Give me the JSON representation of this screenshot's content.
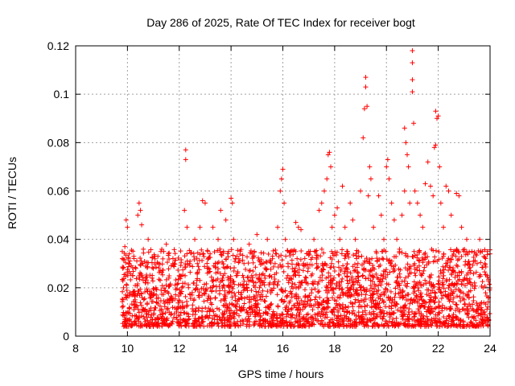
{
  "chart_data": {
    "type": "scatter",
    "title": "Day 286 of 2025, Rate Of TEC Index for receiver bogt",
    "xlabel": "GPS time / hours",
    "ylabel": "ROTI / TECUs",
    "xlim": [
      8,
      24
    ],
    "ylim": [
      0,
      0.12
    ],
    "xticks": [
      "8",
      "10",
      "12",
      "14",
      "16",
      "18",
      "20",
      "22",
      "24"
    ],
    "yticks": [
      "0",
      "0.02",
      "0.04",
      "0.06",
      "0.08",
      "0.1",
      "0.12"
    ],
    "grid": true,
    "legend": "none",
    "marker": "+",
    "series_color": "#ff0000",
    "series": [
      {
        "points": [
          [
            9.8,
            0.012
          ],
          [
            9.8,
            0.035
          ],
          [
            9.85,
            0.02
          ],
          [
            9.9,
            0.037
          ],
          [
            9.95,
            0.048
          ],
          [
            10.0,
            0.045
          ],
          [
            10.05,
            0.03
          ],
          [
            10.1,
            0.018
          ],
          [
            10.2,
            0.025
          ],
          [
            10.3,
            0.015
          ],
          [
            10.4,
            0.05
          ],
          [
            10.45,
            0.055
          ],
          [
            10.5,
            0.052
          ],
          [
            10.55,
            0.046
          ],
          [
            10.6,
            0.03
          ],
          [
            10.7,
            0.022
          ],
          [
            10.8,
            0.04
          ],
          [
            10.9,
            0.017
          ],
          [
            11.0,
            0.028
          ],
          [
            11.1,
            0.02
          ],
          [
            11.2,
            0.03
          ],
          [
            11.3,
            0.019
          ],
          [
            11.4,
            0.035
          ],
          [
            11.5,
            0.038
          ],
          [
            11.6,
            0.024
          ],
          [
            11.7,
            0.015
          ],
          [
            11.8,
            0.03
          ],
          [
            11.9,
            0.01
          ],
          [
            12.0,
            0.025
          ],
          [
            12.1,
            0.02
          ],
          [
            12.2,
            0.052
          ],
          [
            12.25,
            0.077
          ],
          [
            12.25,
            0.073
          ],
          [
            12.3,
            0.045
          ],
          [
            12.4,
            0.03
          ],
          [
            12.5,
            0.018
          ],
          [
            12.6,
            0.04
          ],
          [
            12.7,
            0.03
          ],
          [
            12.8,
            0.045
          ],
          [
            12.9,
            0.056
          ],
          [
            13.0,
            0.055
          ],
          [
            13.1,
            0.035
          ],
          [
            13.2,
            0.02
          ],
          [
            13.3,
            0.045
          ],
          [
            13.4,
            0.03
          ],
          [
            13.5,
            0.04
          ],
          [
            13.6,
            0.052
          ],
          [
            13.7,
            0.025
          ],
          [
            13.8,
            0.048
          ],
          [
            13.9,
            0.035
          ],
          [
            14.0,
            0.057
          ],
          [
            14.05,
            0.055
          ],
          [
            14.1,
            0.04
          ],
          [
            14.2,
            0.025
          ],
          [
            14.3,
            0.032
          ],
          [
            14.4,
            0.018
          ],
          [
            14.5,
            0.03
          ],
          [
            14.6,
            0.02
          ],
          [
            14.7,
            0.038
          ],
          [
            14.8,
            0.025
          ],
          [
            14.9,
            0.035
          ],
          [
            15.0,
            0.042
          ],
          [
            15.1,
            0.02
          ],
          [
            15.2,
            0.03
          ],
          [
            15.3,
            0.025
          ],
          [
            15.4,
            0.04
          ],
          [
            15.5,
            0.022
          ],
          [
            15.6,
            0.032
          ],
          [
            15.7,
            0.03
          ],
          [
            15.8,
            0.045
          ],
          [
            15.9,
            0.06
          ],
          [
            15.95,
            0.065
          ],
          [
            16.0,
            0.069
          ],
          [
            16.05,
            0.055
          ],
          [
            16.1,
            0.04
          ],
          [
            16.2,
            0.03
          ],
          [
            16.3,
            0.035
          ],
          [
            16.4,
            0.025
          ],
          [
            16.5,
            0.047
          ],
          [
            16.6,
            0.045
          ],
          [
            16.7,
            0.044
          ],
          [
            16.8,
            0.03
          ],
          [
            16.9,
            0.022
          ],
          [
            17.0,
            0.035
          ],
          [
            17.1,
            0.025
          ],
          [
            17.2,
            0.04
          ],
          [
            17.3,
            0.03
          ],
          [
            17.4,
            0.052
          ],
          [
            17.5,
            0.055
          ],
          [
            17.6,
            0.06
          ],
          [
            17.7,
            0.065
          ],
          [
            17.75,
            0.075
          ],
          [
            17.8,
            0.076
          ],
          [
            17.85,
            0.07
          ],
          [
            17.9,
            0.045
          ],
          [
            18.0,
            0.05
          ],
          [
            18.1,
            0.053
          ],
          [
            18.2,
            0.04
          ],
          [
            18.3,
            0.062
          ],
          [
            18.4,
            0.045
          ],
          [
            18.5,
            0.035
          ],
          [
            18.6,
            0.055
          ],
          [
            18.7,
            0.048
          ],
          [
            18.8,
            0.04
          ],
          [
            18.9,
            0.03
          ],
          [
            19.0,
            0.06
          ],
          [
            19.1,
            0.082
          ],
          [
            19.15,
            0.094
          ],
          [
            19.2,
            0.103
          ],
          [
            19.2,
            0.107
          ],
          [
            19.25,
            0.095
          ],
          [
            19.3,
            0.058
          ],
          [
            19.35,
            0.07
          ],
          [
            19.4,
            0.065
          ],
          [
            19.5,
            0.045
          ],
          [
            19.6,
            0.035
          ],
          [
            19.7,
            0.058
          ],
          [
            19.8,
            0.05
          ],
          [
            19.9,
            0.04
          ],
          [
            20.0,
            0.07
          ],
          [
            20.05,
            0.073
          ],
          [
            20.1,
            0.065
          ],
          [
            20.2,
            0.055
          ],
          [
            20.3,
            0.048
          ],
          [
            20.4,
            0.04
          ],
          [
            20.5,
            0.035
          ],
          [
            20.6,
            0.05
          ],
          [
            20.7,
            0.06
          ],
          [
            20.75,
            0.08
          ],
          [
            20.7,
            0.086
          ],
          [
            20.8,
            0.075
          ],
          [
            20.85,
            0.07
          ],
          [
            20.9,
            0.055
          ],
          [
            21.0,
            0.118
          ],
          [
            21.0,
            0.113
          ],
          [
            21.0,
            0.106
          ],
          [
            21.0,
            0.101
          ],
          [
            21.05,
            0.088
          ],
          [
            21.1,
            0.06
          ],
          [
            21.2,
            0.055
          ],
          [
            21.3,
            0.05
          ],
          [
            21.4,
            0.045
          ],
          [
            21.5,
            0.063
          ],
          [
            21.6,
            0.072
          ],
          [
            21.7,
            0.062
          ],
          [
            21.8,
            0.058
          ],
          [
            21.85,
            0.078
          ],
          [
            21.9,
            0.079
          ],
          [
            21.9,
            0.093
          ],
          [
            21.95,
            0.09
          ],
          [
            22.0,
            0.091
          ],
          [
            22.05,
            0.07
          ],
          [
            22.1,
            0.055
          ],
          [
            22.2,
            0.045
          ],
          [
            22.3,
            0.062
          ],
          [
            22.4,
            0.06
          ],
          [
            22.5,
            0.05
          ],
          [
            22.6,
            0.035
          ],
          [
            22.7,
            0.059
          ],
          [
            22.8,
            0.058
          ],
          [
            22.9,
            0.045
          ],
          [
            23.0,
            0.035
          ],
          [
            23.1,
            0.04
          ],
          [
            23.2,
            0.028
          ],
          [
            23.3,
            0.035
          ],
          [
            23.4,
            0.022
          ],
          [
            23.5,
            0.03
          ],
          [
            23.6,
            0.04
          ],
          [
            23.7,
            0.035
          ],
          [
            23.8,
            0.03
          ],
          [
            23.9,
            0.035
          ],
          [
            24.0,
            0.034
          ]
        ]
      }
    ]
  }
}
